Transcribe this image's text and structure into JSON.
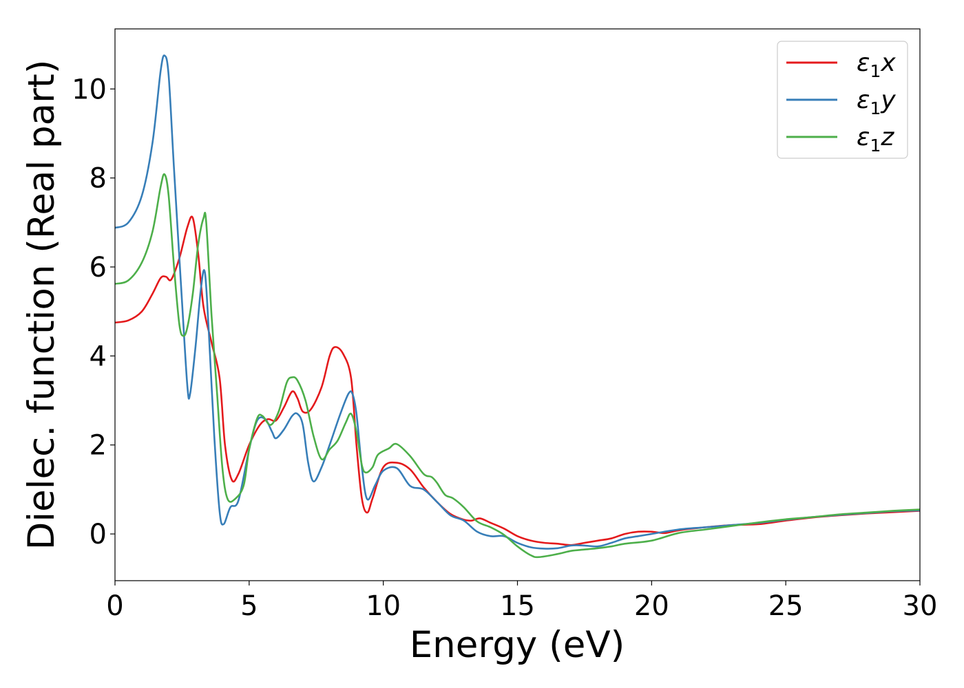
{
  "chart_data": {
    "type": "line",
    "title": "",
    "xlabel": "Energy (eV)",
    "ylabel": "Dielec. function (Real part)",
    "xlim": [
      0,
      30
    ],
    "ylim": [
      -1.05,
      11.35
    ],
    "xticks": [
      0,
      5,
      10,
      15,
      20,
      25,
      30
    ],
    "yticks": [
      0,
      2,
      4,
      6,
      8,
      10
    ],
    "grid": false,
    "legend_position": "top-right",
    "series": [
      {
        "name": "ε₁x",
        "legend_base": "ε",
        "legend_sub": "1",
        "legend_tail": "x",
        "color": "#e41a1c",
        "points": [
          [
            0,
            4.75
          ],
          [
            0.5,
            4.8
          ],
          [
            1,
            5.0
          ],
          [
            1.4,
            5.4
          ],
          [
            1.7,
            5.75
          ],
          [
            1.9,
            5.78
          ],
          [
            2.1,
            5.72
          ],
          [
            2.4,
            6.2
          ],
          [
            2.7,
            6.9
          ],
          [
            2.9,
            7.1
          ],
          [
            3.1,
            6.3
          ],
          [
            3.3,
            5.1
          ],
          [
            3.6,
            4.3
          ],
          [
            3.9,
            3.5
          ],
          [
            4.1,
            2.0
          ],
          [
            4.35,
            1.22
          ],
          [
            4.6,
            1.35
          ],
          [
            5.0,
            2.0
          ],
          [
            5.4,
            2.45
          ],
          [
            5.7,
            2.58
          ],
          [
            6.0,
            2.55
          ],
          [
            6.3,
            2.85
          ],
          [
            6.6,
            3.2
          ],
          [
            6.8,
            3.05
          ],
          [
            7.0,
            2.75
          ],
          [
            7.3,
            2.8
          ],
          [
            7.7,
            3.3
          ],
          [
            8.0,
            4.0
          ],
          [
            8.2,
            4.2
          ],
          [
            8.5,
            4.05
          ],
          [
            8.8,
            3.5
          ],
          [
            9.0,
            2.0
          ],
          [
            9.2,
            0.8
          ],
          [
            9.4,
            0.48
          ],
          [
            9.6,
            0.8
          ],
          [
            10.0,
            1.5
          ],
          [
            10.5,
            1.6
          ],
          [
            11.0,
            1.45
          ],
          [
            11.5,
            1.05
          ],
          [
            12.0,
            0.72
          ],
          [
            12.5,
            0.45
          ],
          [
            13.0,
            0.32
          ],
          [
            13.3,
            0.3
          ],
          [
            13.6,
            0.35
          ],
          [
            14.0,
            0.25
          ],
          [
            14.5,
            0.12
          ],
          [
            15.0,
            -0.05
          ],
          [
            15.5,
            -0.15
          ],
          [
            16.0,
            -0.2
          ],
          [
            16.5,
            -0.22
          ],
          [
            17.0,
            -0.25
          ],
          [
            17.5,
            -0.2
          ],
          [
            18.0,
            -0.15
          ],
          [
            18.5,
            -0.1
          ],
          [
            19.0,
            0.0
          ],
          [
            19.5,
            0.05
          ],
          [
            20.0,
            0.05
          ],
          [
            20.5,
            0.02
          ],
          [
            21.0,
            0.08
          ],
          [
            22.0,
            0.15
          ],
          [
            23.0,
            0.2
          ],
          [
            24.0,
            0.22
          ],
          [
            25.0,
            0.3
          ],
          [
            26.0,
            0.37
          ],
          [
            27.0,
            0.42
          ],
          [
            28.0,
            0.46
          ],
          [
            29.0,
            0.49
          ],
          [
            30.0,
            0.52
          ]
        ]
      },
      {
        "name": "ε₁y",
        "legend_base": "ε",
        "legend_sub": "1",
        "legend_tail": "y",
        "color": "#377eb8",
        "points": [
          [
            0,
            6.88
          ],
          [
            0.5,
            7.0
          ],
          [
            1.0,
            7.6
          ],
          [
            1.4,
            8.8
          ],
          [
            1.7,
            10.4
          ],
          [
            1.85,
            10.75
          ],
          [
            2.0,
            10.3
          ],
          [
            2.2,
            8.2
          ],
          [
            2.5,
            5.2
          ],
          [
            2.7,
            3.3
          ],
          [
            2.8,
            3.15
          ],
          [
            3.0,
            4.2
          ],
          [
            3.2,
            5.5
          ],
          [
            3.35,
            5.88
          ],
          [
            3.5,
            4.5
          ],
          [
            3.7,
            2.2
          ],
          [
            3.9,
            0.5
          ],
          [
            4.05,
            0.22
          ],
          [
            4.3,
            0.6
          ],
          [
            4.6,
            0.75
          ],
          [
            5.0,
            1.9
          ],
          [
            5.3,
            2.55
          ],
          [
            5.6,
            2.58
          ],
          [
            5.85,
            2.3
          ],
          [
            6.0,
            2.15
          ],
          [
            6.3,
            2.35
          ],
          [
            6.6,
            2.65
          ],
          [
            6.8,
            2.7
          ],
          [
            7.0,
            2.45
          ],
          [
            7.2,
            1.6
          ],
          [
            7.4,
            1.18
          ],
          [
            7.7,
            1.5
          ],
          [
            8.0,
            2.0
          ],
          [
            8.4,
            2.7
          ],
          [
            8.7,
            3.15
          ],
          [
            8.85,
            3.15
          ],
          [
            9.0,
            2.7
          ],
          [
            9.2,
            1.5
          ],
          [
            9.4,
            0.78
          ],
          [
            9.7,
            1.1
          ],
          [
            10.0,
            1.42
          ],
          [
            10.5,
            1.48
          ],
          [
            11.0,
            1.08
          ],
          [
            11.5,
            1.0
          ],
          [
            12.0,
            0.72
          ],
          [
            12.5,
            0.42
          ],
          [
            13.0,
            0.3
          ],
          [
            13.5,
            0.05
          ],
          [
            14.0,
            -0.05
          ],
          [
            14.5,
            -0.05
          ],
          [
            15.0,
            -0.2
          ],
          [
            15.5,
            -0.3
          ],
          [
            16.0,
            -0.33
          ],
          [
            16.5,
            -0.32
          ],
          [
            17.0,
            -0.26
          ],
          [
            17.5,
            -0.26
          ],
          [
            18.0,
            -0.28
          ],
          [
            18.5,
            -0.2
          ],
          [
            19.0,
            -0.1
          ],
          [
            19.5,
            -0.05
          ],
          [
            20.0,
            0.0
          ],
          [
            21.0,
            0.1
          ],
          [
            22.0,
            0.15
          ],
          [
            23.0,
            0.2
          ],
          [
            24.0,
            0.25
          ],
          [
            25.0,
            0.32
          ],
          [
            26.0,
            0.38
          ],
          [
            27.0,
            0.43
          ],
          [
            28.0,
            0.47
          ],
          [
            29.0,
            0.51
          ],
          [
            30.0,
            0.53
          ]
        ]
      },
      {
        "name": "ε₁z",
        "legend_base": "ε",
        "legend_sub": "1",
        "legend_tail": "z",
        "color": "#4daf4a",
        "points": [
          [
            0,
            5.62
          ],
          [
            0.5,
            5.7
          ],
          [
            1.0,
            6.1
          ],
          [
            1.4,
            6.8
          ],
          [
            1.7,
            7.8
          ],
          [
            1.85,
            8.08
          ],
          [
            2.0,
            7.6
          ],
          [
            2.2,
            6.0
          ],
          [
            2.4,
            4.7
          ],
          [
            2.55,
            4.45
          ],
          [
            2.7,
            4.65
          ],
          [
            2.9,
            5.4
          ],
          [
            3.1,
            6.5
          ],
          [
            3.3,
            7.1
          ],
          [
            3.4,
            7.0
          ],
          [
            3.6,
            4.9
          ],
          [
            3.8,
            3.2
          ],
          [
            4.0,
            1.5
          ],
          [
            4.2,
            0.78
          ],
          [
            4.5,
            0.8
          ],
          [
            4.8,
            1.1
          ],
          [
            5.0,
            1.9
          ],
          [
            5.3,
            2.6
          ],
          [
            5.5,
            2.65
          ],
          [
            5.8,
            2.45
          ],
          [
            6.1,
            2.75
          ],
          [
            6.4,
            3.4
          ],
          [
            6.6,
            3.52
          ],
          [
            6.8,
            3.45
          ],
          [
            7.1,
            3.0
          ],
          [
            7.4,
            2.2
          ],
          [
            7.7,
            1.68
          ],
          [
            8.0,
            1.9
          ],
          [
            8.3,
            2.1
          ],
          [
            8.6,
            2.5
          ],
          [
            8.8,
            2.7
          ],
          [
            9.0,
            2.3
          ],
          [
            9.2,
            1.55
          ],
          [
            9.35,
            1.38
          ],
          [
            9.6,
            1.5
          ],
          [
            9.8,
            1.78
          ],
          [
            10.2,
            1.92
          ],
          [
            10.5,
            2.02
          ],
          [
            11.0,
            1.75
          ],
          [
            11.5,
            1.35
          ],
          [
            11.8,
            1.28
          ],
          [
            12.0,
            1.15
          ],
          [
            12.3,
            0.88
          ],
          [
            12.6,
            0.8
          ],
          [
            13.0,
            0.6
          ],
          [
            13.5,
            0.28
          ],
          [
            14.0,
            0.15
          ],
          [
            14.5,
            -0.02
          ],
          [
            15.0,
            -0.28
          ],
          [
            15.5,
            -0.48
          ],
          [
            15.8,
            -0.52
          ],
          [
            16.5,
            -0.45
          ],
          [
            17.0,
            -0.38
          ],
          [
            17.5,
            -0.35
          ],
          [
            18.0,
            -0.32
          ],
          [
            18.5,
            -0.28
          ],
          [
            19.0,
            -0.22
          ],
          [
            20.0,
            -0.15
          ],
          [
            21.0,
            0.02
          ],
          [
            22.0,
            0.1
          ],
          [
            23.0,
            0.18
          ],
          [
            24.0,
            0.26
          ],
          [
            25.0,
            0.33
          ],
          [
            26.0,
            0.38
          ],
          [
            27.0,
            0.44
          ],
          [
            28.0,
            0.48
          ],
          [
            29.0,
            0.52
          ],
          [
            30.0,
            0.55
          ]
        ]
      }
    ]
  }
}
